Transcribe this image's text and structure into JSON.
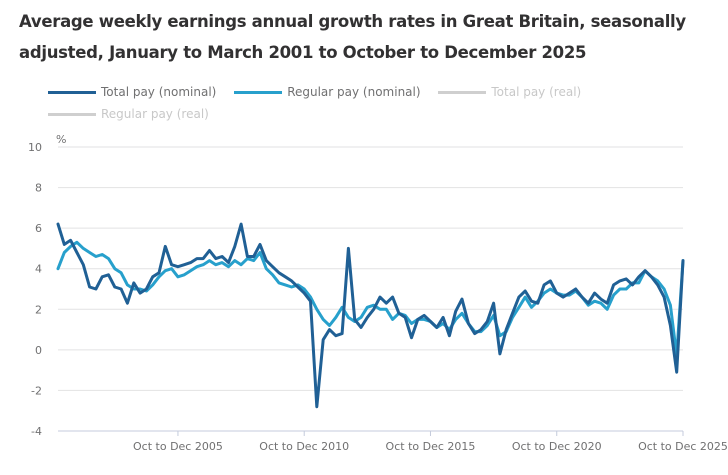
{
  "chart_data": {
    "type": "line",
    "title": "Average weekly earnings annual growth rates in Great Britain, seasonally adjusted, January to March 2001 to October to December 2025",
    "ylabel": "%",
    "xlabel": "",
    "ylim": [
      -4,
      10
    ],
    "yticks": [
      "10",
      "8",
      "6",
      "4",
      "2",
      "0",
      "-2",
      "-4"
    ],
    "ytick_values": [
      10,
      8,
      6,
      4,
      2,
      0,
      -2,
      -4
    ],
    "xticks": [
      {
        "label": "Oct to Dec 2005",
        "index": 19
      },
      {
        "label": "Oct to Dec 2010",
        "index": 39
      },
      {
        "label": "Oct to Dec 2015",
        "index": 59
      },
      {
        "label": "Oct to Dec 2020",
        "index": 79
      },
      {
        "label": "Oct to Dec 2025",
        "index": 99
      }
    ],
    "x_start": "Jan to Mar 2001",
    "x_end": "Oct to Dec 2025",
    "n_points": 100,
    "grid": true,
    "legend_position": "top",
    "series": [
      {
        "name": "Total pay (nominal)",
        "color": "#206095",
        "visible": true,
        "values": [
          6.2,
          5.2,
          5.4,
          4.8,
          4.2,
          3.1,
          3.0,
          3.6,
          3.7,
          3.1,
          3.0,
          2.3,
          3.3,
          2.8,
          3.0,
          3.6,
          3.8,
          5.1,
          4.2,
          4.1,
          4.2,
          4.3,
          4.5,
          4.5,
          4.9,
          4.5,
          4.6,
          4.3,
          5.1,
          6.2,
          4.6,
          4.6,
          5.2,
          4.4,
          4.1,
          3.8,
          3.6,
          3.4,
          3.1,
          2.8,
          2.4,
          -2.8,
          0.5,
          1.0,
          0.7,
          0.8,
          5.0,
          1.5,
          1.1,
          1.6,
          2.0,
          2.6,
          2.3,
          2.6,
          1.8,
          1.6,
          0.6,
          1.5,
          1.7,
          1.4,
          1.1,
          1.6,
          0.7,
          1.9,
          2.5,
          1.3,
          0.8,
          1.0,
          1.4,
          2.3,
          -0.2,
          1.0,
          1.8,
          2.6,
          2.9,
          2.4,
          2.3,
          3.2,
          3.4,
          2.8,
          2.6,
          2.8,
          3.0,
          2.6,
          2.3,
          2.8,
          2.5,
          2.3,
          3.2,
          3.4,
          3.5,
          3.2,
          3.6,
          3.9,
          3.6,
          3.2,
          2.6,
          1.2,
          -1.1,
          4.4
        ]
      },
      {
        "name": "Regular pay (nominal)",
        "color": "#27a0cc",
        "visible": true,
        "values": [
          4.0,
          4.8,
          5.1,
          5.3,
          5.0,
          4.8,
          4.6,
          4.7,
          4.5,
          4.0,
          3.8,
          3.2,
          3.0,
          3.0,
          2.9,
          3.2,
          3.6,
          3.9,
          4.0,
          3.6,
          3.7,
          3.9,
          4.1,
          4.2,
          4.4,
          4.2,
          4.3,
          4.1,
          4.4,
          4.2,
          4.5,
          4.4,
          4.8,
          4.0,
          3.7,
          3.3,
          3.2,
          3.1,
          3.2,
          3.0,
          2.6,
          2.0,
          1.5,
          1.2,
          1.6,
          2.1,
          1.6,
          1.4,
          1.6,
          2.1,
          2.2,
          2.0,
          2.0,
          1.5,
          1.8,
          1.7,
          1.3,
          1.5,
          1.5,
          1.4,
          1.1,
          1.3,
          1.0,
          1.5,
          1.8,
          1.3,
          0.9,
          0.9,
          1.2,
          1.7,
          0.7,
          0.9,
          1.6,
          2.1,
          2.6,
          2.1,
          2.4,
          2.8,
          3.0,
          2.8,
          2.7,
          2.7,
          2.9,
          2.6,
          2.2,
          2.4,
          2.3,
          2.0,
          2.7,
          3.0,
          3.0,
          3.3,
          3.3,
          3.9,
          3.6,
          3.4,
          3.0,
          2.2,
          -0.3,
          4.4
        ]
      },
      {
        "name": "Total pay (real)",
        "color": "#c8c8c8",
        "visible": false,
        "values": []
      },
      {
        "name": "Regular pay (real)",
        "color": "#c8c8c8",
        "visible": false,
        "values": []
      }
    ]
  },
  "legend": [
    {
      "label": "Total pay (nominal)",
      "active": true
    },
    {
      "label": "Regular pay (nominal)",
      "active": true
    },
    {
      "label": "Total pay (real)",
      "active": false
    },
    {
      "label": "Regular pay (real)",
      "active": false
    }
  ]
}
